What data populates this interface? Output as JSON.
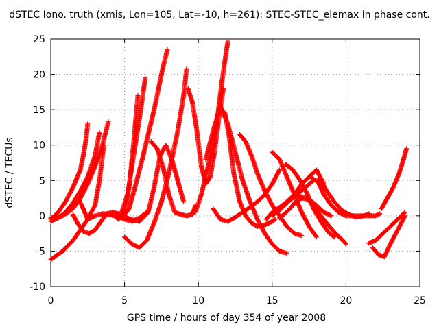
{
  "chart_data": {
    "type": "scatter",
    "title": "dSTEC Iono. truth (xmis, Lon=105, Lat=-10, h=261): STEC-STEC_elemax in phase cont.",
    "xlabel": "GPS time / hours of day 354 of year 2008",
    "ylabel": "dSTEC  / TECUs",
    "xlim": [
      0,
      25
    ],
    "ylim": [
      -10,
      25
    ],
    "xticks": [
      "0",
      "5",
      "10",
      "15",
      "20",
      "25"
    ],
    "yticks": [
      "-10",
      "-5",
      "0",
      "5",
      "10",
      "15",
      "20",
      "25"
    ],
    "grid": true,
    "marker": "+",
    "color": "#ff0000",
    "series": [
      {
        "x": [
          0.0,
          0.5,
          1.0,
          1.5,
          2.0,
          2.2,
          2.4,
          2.5
        ],
        "y": [
          -0.5,
          0.5,
          2.0,
          4.0,
          6.5,
          8.5,
          11.0,
          13.0
        ]
      },
      {
        "x": [
          0.0,
          0.5,
          1.0,
          1.5,
          2.0,
          2.5,
          3.0,
          3.3
        ],
        "y": [
          -0.8,
          -0.3,
          0.5,
          1.8,
          3.5,
          5.5,
          8.5,
          11.8
        ]
      },
      {
        "x": [
          0.0,
          0.8,
          1.5,
          2.0,
          2.5,
          3.0,
          3.5,
          3.9
        ],
        "y": [
          -0.5,
          0.0,
          1.0,
          2.5,
          4.5,
          7.0,
          10.0,
          13.3
        ]
      },
      {
        "x": [
          0.0,
          0.8,
          1.5,
          2.0,
          2.5,
          3.0,
          3.3,
          3.6
        ],
        "y": [
          -6.2,
          -5.0,
          -3.5,
          -2.0,
          -0.5,
          1.5,
          5.0,
          10.0
        ]
      },
      {
        "x": [
          0.0,
          0.5,
          1.0,
          1.5,
          1.8,
          2.2,
          2.5,
          3.0,
          3.5,
          4.0,
          4.5,
          5.0,
          5.5,
          6.0,
          6.5
        ],
        "y": [
          -0.3,
          -0.2,
          0.3,
          1.5,
          2.8,
          1.0,
          -0.5,
          0.0,
          0.3,
          0.2,
          0.0,
          -0.5,
          -0.8,
          -0.3,
          0.5
        ]
      },
      {
        "x": [
          1.5,
          1.8,
          2.2,
          2.6,
          3.0,
          3.4,
          3.8,
          4.2,
          4.8,
          5.4,
          6.0,
          6.6,
          7.0,
          7.4,
          7.8,
          8.2,
          8.6,
          9.0
        ],
        "y": [
          0.2,
          -1.0,
          -2.2,
          -2.5,
          -2.0,
          -0.8,
          0.3,
          0.5,
          0.2,
          -0.5,
          -0.8,
          0.5,
          4.0,
          8.5,
          10.0,
          8.0,
          5.0,
          2.0
        ]
      },
      {
        "x": [
          3.5,
          4.0,
          4.3,
          4.6,
          5.0,
          5.3,
          5.6,
          5.9
        ],
        "y": [
          0.0,
          0.2,
          0.0,
          -0.5,
          0.5,
          4.0,
          10.0,
          17.0
        ]
      },
      {
        "x": [
          4.8,
          5.2,
          5.5,
          5.8,
          6.1,
          6.4
        ],
        "y": [
          0.5,
          3.0,
          7.0,
          11.0,
          15.0,
          19.5
        ]
      },
      {
        "x": [
          5.0,
          5.3,
          5.7,
          6.2,
          6.6,
          7.0,
          7.3,
          7.6,
          7.9
        ],
        "y": [
          0.2,
          1.0,
          4.0,
          8.0,
          11.5,
          15.0,
          18.0,
          21.0,
          23.5
        ]
      },
      {
        "x": [
          5.0,
          5.5,
          6.0,
          6.5,
          7.0,
          7.5,
          8.0,
          8.3,
          8.6,
          9.0,
          9.2
        ],
        "y": [
          -3.0,
          -4.0,
          -4.5,
          -3.5,
          -1.0,
          2.0,
          6.0,
          9.0,
          12.0,
          17.0,
          20.8
        ]
      },
      {
        "x": [
          6.8,
          7.2,
          7.6,
          8.0,
          8.4,
          8.8,
          9.2,
          9.6,
          9.8
        ],
        "y": [
          10.5,
          9.5,
          7.0,
          3.0,
          0.5,
          0.2,
          0.0,
          0.2,
          1.5
        ]
      },
      {
        "x": [
          9.3,
          9.6,
          9.9,
          10.2,
          10.5,
          10.8,
          11.1,
          11.4,
          11.7
        ],
        "y": [
          18.0,
          16.0,
          12.0,
          7.0,
          4.5,
          5.5,
          9.0,
          14.0,
          18.0
        ]
      },
      {
        "x": [
          9.8,
          10.2,
          10.6,
          11.0,
          11.3,
          11.6,
          11.8,
          12.0
        ],
        "y": [
          0.5,
          3.0,
          6.5,
          10.0,
          14.0,
          19.0,
          22.0,
          24.7
        ]
      },
      {
        "x": [
          10.5,
          11.0,
          11.5,
          12.0,
          12.5,
          13.0,
          13.5,
          14.0,
          14.5,
          15.0,
          15.5,
          16.0
        ],
        "y": [
          8.0,
          12.0,
          15.5,
          13.0,
          9.0,
          5.0,
          2.0,
          -0.5,
          -2.5,
          -4.0,
          -5.0,
          -5.3
        ]
      },
      {
        "x": [
          11.5,
          11.8,
          12.1,
          12.4,
          12.8,
          13.2,
          13.6,
          14.0,
          14.5,
          15.0,
          15.2
        ],
        "y": [
          15.0,
          14.5,
          11.0,
          6.0,
          2.0,
          0.0,
          -1.0,
          -1.5,
          -1.3,
          -0.8,
          -0.5
        ]
      },
      {
        "x": [
          11.0,
          11.5,
          12.0,
          12.5,
          13.0,
          13.5,
          14.0,
          14.5,
          15.0,
          15.5
        ],
        "y": [
          1.0,
          -0.5,
          -0.8,
          -0.2,
          0.5,
          1.2,
          2.0,
          3.0,
          4.5,
          6.5
        ]
      },
      {
        "x": [
          12.8,
          13.2,
          13.6,
          14.0,
          14.5,
          15.0,
          15.5,
          16.0,
          16.5,
          17.0
        ],
        "y": [
          11.5,
          10.5,
          8.5,
          6.0,
          3.5,
          1.5,
          0.0,
          -1.5,
          -2.5,
          -2.8
        ]
      },
      {
        "x": [
          14.6,
          15.0,
          15.5,
          16.0,
          16.5,
          17.0,
          17.5,
          18.0,
          18.5
        ],
        "y": [
          -0.5,
          0.5,
          1.2,
          2.0,
          3.0,
          4.5,
          5.5,
          6.5,
          4.5
        ]
      },
      {
        "x": [
          15.0,
          15.5,
          16.0,
          16.5,
          17.0,
          17.5,
          18.0
        ],
        "y": [
          9.0,
          8.0,
          5.5,
          3.0,
          0.5,
          -1.5,
          -3.0
        ]
      },
      {
        "x": [
          15.0,
          15.6,
          16.2,
          16.8,
          17.4,
          17.8
        ],
        "y": [
          0.0,
          1.0,
          2.2,
          3.2,
          4.3,
          5.0
        ]
      },
      {
        "x": [
          15.5,
          15.8,
          16.2,
          16.6,
          17.0,
          17.5,
          18.0,
          18.5,
          19.0
        ],
        "y": [
          -0.3,
          0.2,
          1.0,
          2.0,
          2.5,
          2.3,
          1.5,
          0.5,
          0.0
        ]
      },
      {
        "x": [
          15.9,
          16.4,
          16.9,
          17.4,
          17.8,
          18.3,
          18.8,
          19.2
        ],
        "y": [
          7.3,
          6.5,
          5.0,
          3.0,
          1.0,
          -0.8,
          -2.3,
          -3.0
        ]
      },
      {
        "x": [
          16.8,
          17.3,
          17.8,
          18.3,
          18.8,
          19.3,
          19.8,
          20.0
        ],
        "y": [
          2.8,
          2.5,
          1.5,
          0.0,
          -1.3,
          -2.5,
          -3.5,
          -4.0
        ]
      },
      {
        "x": [
          17.7,
          18.1,
          18.5,
          19.0,
          19.5,
          20.0,
          20.5,
          21.0,
          21.5,
          22.0,
          22.3
        ],
        "y": [
          5.3,
          4.8,
          3.0,
          1.5,
          0.5,
          0.0,
          0.0,
          0.0,
          0.0,
          0.0,
          0.3
        ]
      },
      {
        "x": [
          18.2,
          18.7,
          19.2,
          19.7,
          20.2,
          20.7,
          21.2,
          21.6
        ],
        "y": [
          5.3,
          3.5,
          2.0,
          0.8,
          0.2,
          -0.2,
          0.0,
          0.3
        ]
      },
      {
        "x": [
          21.5,
          22.0,
          22.5,
          23.0,
          23.5,
          24.0
        ],
        "y": [
          -3.9,
          -3.5,
          -2.5,
          -1.5,
          -0.5,
          0.5
        ]
      },
      {
        "x": [
          21.8,
          22.2,
          22.6,
          23.0,
          23.5,
          24.0
        ],
        "y": [
          -4.5,
          -5.5,
          -5.8,
          -4.0,
          -2.0,
          0.0
        ]
      },
      {
        "x": [
          22.4,
          22.8,
          23.2,
          23.6,
          23.9,
          24.1
        ],
        "y": [
          1.0,
          2.5,
          4.0,
          6.0,
          8.0,
          9.5
        ]
      }
    ]
  }
}
